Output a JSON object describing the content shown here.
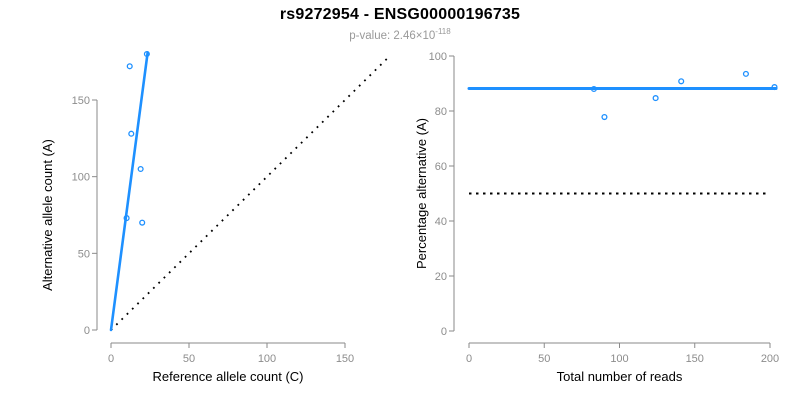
{
  "header": {
    "title": "rs9272954 - ENSG00000196735",
    "pvalue_prefix": "p-value: 2.46×10",
    "pvalue_exponent": "-118"
  },
  "colors": {
    "accent_blue": "#1E90FF",
    "reference_line_black": "#000000",
    "axis_gray": "#8A8A8A",
    "tick_label_gray": "#8C8C8C",
    "axis_title_black": "#000000",
    "subtitle_gray": "#999999",
    "background": "#FFFFFF"
  },
  "chart_data": [
    {
      "type": "scatter",
      "panel": "left",
      "xlabel": "Reference allele count (C)",
      "ylabel": "Alternative allele count (A)",
      "xlim": [
        0,
        178
      ],
      "ylim": [
        0,
        186
      ],
      "xticks": [
        0,
        50,
        100,
        150
      ],
      "yticks": [
        0,
        50,
        100,
        150
      ],
      "grid": false,
      "legend": null,
      "points": [
        [
          10,
          73
        ],
        [
          12,
          172
        ],
        [
          13,
          128
        ],
        [
          19,
          105
        ],
        [
          20,
          70
        ],
        [
          23,
          180
        ]
      ],
      "fit_line": {
        "style": "solid",
        "meaning": "regression through origin",
        "from": [
          0,
          0
        ],
        "to": [
          23.5,
          181
        ]
      },
      "reference_line": {
        "style": "dotted",
        "meaning": "identity y = x",
        "from": [
          0,
          0
        ],
        "to": [
          178,
          178
        ]
      }
    },
    {
      "type": "scatter",
      "panel": "right",
      "xlabel": "Total number of reads",
      "ylabel": "Percentage alternative (A)",
      "xlim": [
        0,
        205
      ],
      "ylim": [
        0,
        100
      ],
      "xticks": [
        0,
        50,
        100,
        150,
        200
      ],
      "yticks": [
        0,
        20,
        40,
        60,
        80,
        100
      ],
      "grid": false,
      "legend": null,
      "points": [
        [
          83,
          88
        ],
        [
          90,
          77.8
        ],
        [
          124,
          84.7
        ],
        [
          141,
          90.8
        ],
        [
          184,
          93.5
        ],
        [
          203,
          88.7
        ]
      ],
      "fit_line": {
        "style": "solid",
        "meaning": "mean alternative percentage",
        "from": [
          0,
          88.2
        ],
        "to": [
          204,
          88.2
        ]
      },
      "reference_line": {
        "style": "dotted",
        "meaning": "50% line",
        "from": [
          0,
          50
        ],
        "to": [
          200,
          50
        ]
      }
    }
  ]
}
